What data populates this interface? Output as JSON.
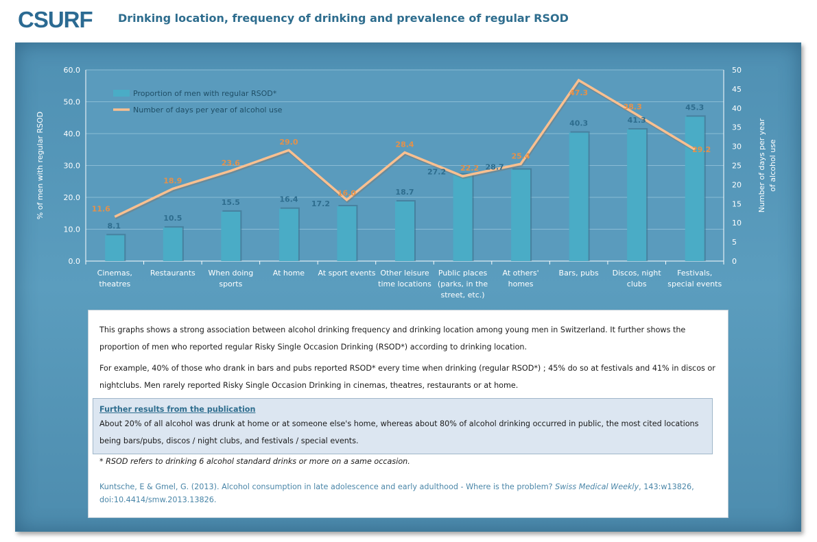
{
  "header": {
    "logo_text": "CSURF",
    "title": "Drinking location, frequency of drinking and prevalence of regular RSOD"
  },
  "colors": {
    "bar": "#4aacc6",
    "bar_label": "#2e6d8e",
    "line": "#fac090",
    "line_label": "#e4914a",
    "panel": "#5494b7"
  },
  "chart_data": {
    "type": "bar",
    "categories": [
      [
        "Cinemas,",
        "theatres"
      ],
      [
        "Restaurants"
      ],
      [
        "When doing",
        "sports"
      ],
      [
        "At home"
      ],
      [
        "At sport events"
      ],
      [
        "Other leisure",
        "time locations"
      ],
      [
        "Public places",
        "(parks, in the",
        "street, etc.)"
      ],
      [
        "At others'",
        "homes"
      ],
      [
        "Bars, pubs"
      ],
      [
        "Discos, night",
        "clubs"
      ],
      [
        "Festivals,",
        "special events"
      ]
    ],
    "series": [
      {
        "name": "Proportion of men with regular RSOD*",
        "type": "bar",
        "axis": "left",
        "values": [
          8.1,
          10.5,
          15.5,
          16.4,
          17.2,
          18.7,
          27.2,
          28.7,
          40.3,
          41.3,
          45.3
        ],
        "labels": [
          "8.1",
          "10.5",
          "15.5",
          "16.4",
          "17.2",
          "18.7",
          "27.2",
          "28.7",
          "40.3",
          "41.3",
          "45.3"
        ]
      },
      {
        "name": "Number of days per year of alcohol use",
        "type": "line",
        "axis": "right",
        "values": [
          11.6,
          18.9,
          23.6,
          29.0,
          16.0,
          28.4,
          22.2,
          25.4,
          47.3,
          38.3,
          29.2
        ],
        "labels": [
          "11.6",
          "18.9",
          "23.6",
          "29.0",
          "16.0",
          "28.4",
          "22.2",
          "25.4",
          "47.3",
          "38.3",
          "29.2"
        ]
      }
    ],
    "ylabel": "% of men with regular  RSOD",
    "y2label": [
      "Number of days per year",
      "of alcohol use"
    ],
    "ylim": [
      0,
      60
    ],
    "y2lim": [
      0,
      50
    ],
    "yticks": [
      "0.0",
      "10.0",
      "20.0",
      "30.0",
      "40.0",
      "50.0",
      "60.0"
    ],
    "y2ticks": [
      "0",
      "5",
      "10",
      "15",
      "20",
      "25",
      "30",
      "35",
      "40",
      "45",
      "50"
    ],
    "grid": true,
    "legend": "top-left"
  },
  "text": {
    "p1": "This graphs shows a strong association  between alcohol drinking frequency and drinking location among young men in Switzerland.  It further shows the proportion of men who reported regular Risky Single Occasion Drinking (RSOD*) according to drinking location.",
    "p2": "For example, 40% of those who drank in bars and pubs reported RSOD* every time when drinking (regular RSOD*) ; 45% do so at festivals and 41% in discos or nightclubs. Men rarely reported Risky Single Occasion Drinking in cinemas, theatres, restaurants  or at home.",
    "further_title": "Further results from the publication",
    "further_body": "About 20% of all alcohol was drunk at home or at someone else's home, whereas about 80% of alcohol drinking occurred in public, the most cited locations being bars/pubs, discos / night clubs, and festivals / special events.",
    "note": "* RSOD refers  to drinking  6 alcohol standard drinks or more on a same occasion.",
    "ref_authors": "Kuntsche, E & Gmel, G. (2013). Alcohol consumption in late adolescence and early adulthood - Where is the problem?",
    "ref_journal": "Swiss Medical Weekly",
    "ref_rest": ", 143:w13826, doi:10.4414/smw.2013.13826."
  }
}
